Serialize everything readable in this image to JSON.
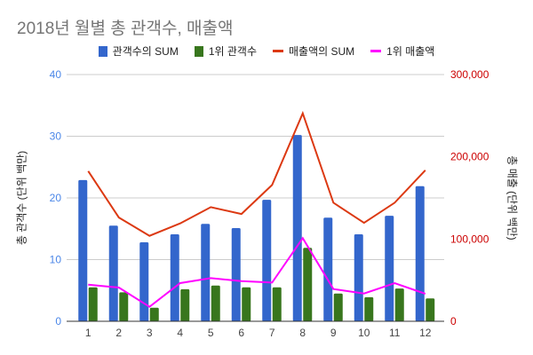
{
  "chart_data": {
    "type": "bar+line",
    "title": "2018년 월별 총 관객수, 매출액",
    "categories": [
      "1",
      "2",
      "3",
      "4",
      "5",
      "6",
      "7",
      "8",
      "9",
      "10",
      "11",
      "12"
    ],
    "y_left": {
      "label": "총 관객수 (단위 백만)",
      "range": [
        0,
        40
      ],
      "ticks": [
        "0",
        "10",
        "20",
        "30",
        "40"
      ],
      "color": "#4a86e8"
    },
    "y_right": {
      "label": "총 매출 (단위 백만)",
      "range": [
        0,
        300000
      ],
      "ticks": [
        "0",
        "100,000",
        "200,000",
        "300,000"
      ],
      "color": "#cc0000"
    },
    "grid": true,
    "legend_position": "top",
    "series": [
      {
        "name": "관객수의 SUM",
        "type": "bar",
        "axis": "left",
        "color": "#3366cc",
        "values": [
          22.9,
          15.5,
          12.8,
          14.1,
          15.8,
          15.1,
          19.7,
          30.2,
          16.8,
          14.1,
          17.1,
          21.9
        ]
      },
      {
        "name": "1위 관객수",
        "type": "bar",
        "axis": "left",
        "color": "#38761d",
        "values": [
          5.5,
          4.7,
          2.2,
          5.2,
          5.8,
          5.5,
          5.5,
          11.9,
          4.5,
          3.9,
          5.3,
          3.7
        ]
      },
      {
        "name": "매출액의 SUM",
        "type": "line",
        "axis": "right",
        "color": "#dc3912",
        "values": [
          182600,
          126200,
          103900,
          119000,
          138800,
          130500,
          165800,
          252800,
          144200,
          119700,
          144200,
          183700
        ]
      },
      {
        "name": "1위 매출액",
        "type": "line",
        "axis": "right",
        "color": "#ff00ff",
        "values": [
          44600,
          41000,
          17600,
          46400,
          52500,
          48900,
          47100,
          101100,
          39200,
          33800,
          46400,
          33400
        ]
      }
    ]
  }
}
